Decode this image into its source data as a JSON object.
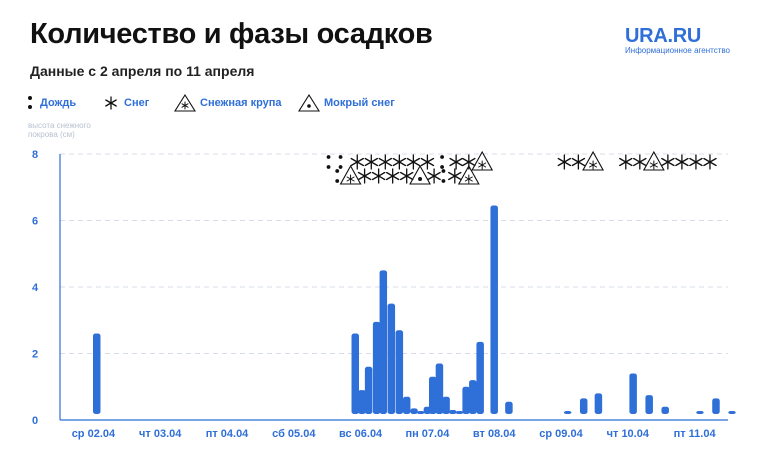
{
  "header": {
    "title": "Количество и фазы осадков",
    "subtitle": "Данные с 2 апреля по 11 апреля"
  },
  "brand": {
    "name": "URA.RU",
    "tagline": "Информационное агентство",
    "color": "#2f6fd8"
  },
  "legend": [
    {
      "key": "rain",
      "label": "Дождь",
      "icon": "two-dots-icon"
    },
    {
      "key": "snow",
      "label": "Снег",
      "icon": "asterisk-icon"
    },
    {
      "key": "pellets",
      "label": "Снежная крупа",
      "icon": "triangle-asterisk-icon"
    },
    {
      "key": "wet",
      "label": "Мокрый снег",
      "icon": "triangle-dot-icon"
    }
  ],
  "chart_data": {
    "type": "bar",
    "ylabel": "высота снежного покрова (см)",
    "ylim": [
      0,
      8
    ],
    "yticks": [
      0,
      2,
      4,
      6,
      8
    ],
    "grid": true,
    "bar_color": "#2f6fd8",
    "categories": [
      "ср 02.04",
      "чт 03.04",
      "пт 04.04",
      "сб 05.04",
      "вс 06.04",
      "пн 07.04",
      "вт 08.04",
      "ср 09.04",
      "чт 10.04",
      "пт 11.04"
    ],
    "series": [
      {
        "values": [
          {
            "x": 0.05,
            "y": 2.6
          },
          {
            "x": 3.92,
            "y": 2.6
          },
          {
            "x": 4.02,
            "y": 0.9
          },
          {
            "x": 4.12,
            "y": 1.6
          },
          {
            "x": 4.24,
            "y": 2.95
          },
          {
            "x": 4.34,
            "y": 4.5
          },
          {
            "x": 4.46,
            "y": 3.5
          },
          {
            "x": 4.58,
            "y": 2.7
          },
          {
            "x": 4.69,
            "y": 0.7
          },
          {
            "x": 4.8,
            "y": 0.35
          },
          {
            "x": 4.9,
            "y": 0.15
          },
          {
            "x": 5.0,
            "y": 0.4
          },
          {
            "x": 5.08,
            "y": 1.3
          },
          {
            "x": 5.18,
            "y": 1.7
          },
          {
            "x": 5.28,
            "y": 0.7
          },
          {
            "x": 5.38,
            "y": 0.3
          },
          {
            "x": 5.48,
            "y": 0.2
          },
          {
            "x": 5.58,
            "y": 1.0
          },
          {
            "x": 5.68,
            "y": 1.2
          },
          {
            "x": 5.79,
            "y": 2.35
          },
          {
            "x": 6.0,
            "y": 6.45
          },
          {
            "x": 6.22,
            "y": 0.55
          },
          {
            "x": 7.1,
            "y": 0.15
          },
          {
            "x": 7.34,
            "y": 0.65
          },
          {
            "x": 7.56,
            "y": 0.8
          },
          {
            "x": 8.08,
            "y": 1.4
          },
          {
            "x": 8.32,
            "y": 0.75
          },
          {
            "x": 8.56,
            "y": 0.4
          },
          {
            "x": 9.08,
            "y": 0.15
          },
          {
            "x": 9.32,
            "y": 0.65
          },
          {
            "x": 9.56,
            "y": 0.25
          }
        ]
      }
    ],
    "phase_symbols": [
      {
        "x": 3.52,
        "row": "top",
        "kind": "rain"
      },
      {
        "x": 3.7,
        "row": "top",
        "kind": "rain"
      },
      {
        "x": 3.95,
        "row": "top",
        "kind": "snow"
      },
      {
        "x": 4.16,
        "row": "top",
        "kind": "snow"
      },
      {
        "x": 4.37,
        "row": "top",
        "kind": "snow"
      },
      {
        "x": 4.58,
        "row": "top",
        "kind": "snow"
      },
      {
        "x": 4.79,
        "row": "top",
        "kind": "snow"
      },
      {
        "x": 5.0,
        "row": "top",
        "kind": "snow"
      },
      {
        "x": 5.22,
        "row": "top",
        "kind": "rain"
      },
      {
        "x": 5.43,
        "row": "top",
        "kind": "snow"
      },
      {
        "x": 5.62,
        "row": "top",
        "kind": "snow"
      },
      {
        "x": 5.82,
        "row": "top",
        "kind": "pellets"
      },
      {
        "x": 7.05,
        "row": "top",
        "kind": "snow"
      },
      {
        "x": 7.26,
        "row": "top",
        "kind": "snow"
      },
      {
        "x": 7.48,
        "row": "top",
        "kind": "pellets"
      },
      {
        "x": 7.97,
        "row": "top",
        "kind": "snow"
      },
      {
        "x": 8.18,
        "row": "top",
        "kind": "snow"
      },
      {
        "x": 8.39,
        "row": "top",
        "kind": "pellets"
      },
      {
        "x": 8.6,
        "row": "top",
        "kind": "snow"
      },
      {
        "x": 8.81,
        "row": "top",
        "kind": "snow"
      },
      {
        "x": 9.02,
        "row": "top",
        "kind": "snow"
      },
      {
        "x": 9.23,
        "row": "top",
        "kind": "snow"
      },
      {
        "x": 3.65,
        "row": "bottom",
        "kind": "rain"
      },
      {
        "x": 3.85,
        "row": "bottom",
        "kind": "pellets"
      },
      {
        "x": 4.06,
        "row": "bottom",
        "kind": "snow"
      },
      {
        "x": 4.27,
        "row": "bottom",
        "kind": "snow"
      },
      {
        "x": 4.48,
        "row": "bottom",
        "kind": "snow"
      },
      {
        "x": 4.69,
        "row": "bottom",
        "kind": "snow"
      },
      {
        "x": 4.89,
        "row": "bottom",
        "kind": "wet"
      },
      {
        "x": 5.1,
        "row": "bottom",
        "kind": "snow"
      },
      {
        "x": 5.24,
        "row": "bottom",
        "kind": "rain"
      },
      {
        "x": 5.41,
        "row": "bottom",
        "kind": "snow"
      },
      {
        "x": 5.62,
        "row": "bottom",
        "kind": "pellets"
      }
    ]
  }
}
